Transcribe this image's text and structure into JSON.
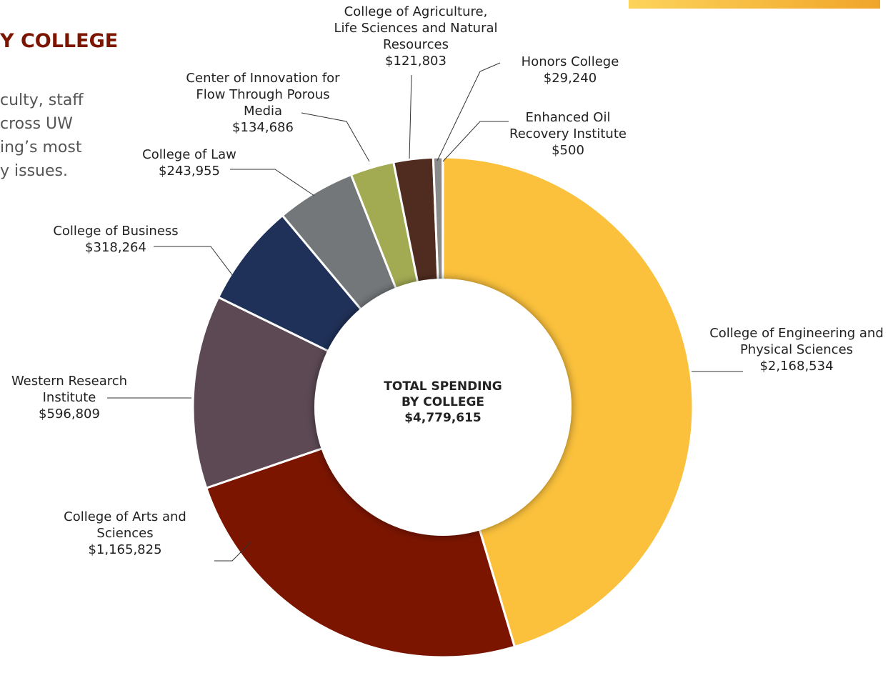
{
  "page": {
    "heading": "Y COLLEGE",
    "intro": [
      "culty, staff",
      "cross UW",
      "ing’s most",
      "y issues."
    ]
  },
  "chart_data": {
    "type": "donut",
    "center_title": "TOTAL SPENDING BY COLLEGE",
    "total": 4779615,
    "total_label": "$4,779,615",
    "categories": [
      "College of Engineering and Physical Sciences",
      "College of Arts and Sciences",
      "Western Research Institute",
      "College of Business",
      "College of Law",
      "Center of Innovation for Flow Through Porous Media",
      "College of Agriculture, Life Sciences and Natural Resources",
      "Honors College",
      "Enhanced Oil Recovery Institute"
    ],
    "values": [
      2168534,
      1165825,
      596809,
      318264,
      243955,
      134686,
      121803,
      29240,
      500
    ],
    "value_labels": [
      "$2,168,534",
      "$1,165,825",
      "$596,809",
      "$318,264",
      "$243,955",
      "$134,686",
      "$121,803",
      "$29,240",
      "$500"
    ],
    "colors": [
      "#fbc13c",
      "#7b1500",
      "#5c4954",
      "#1f3158",
      "#737779",
      "#a2aa52",
      "#4f2c1f",
      "#8a8a8a",
      "#3f6b3c"
    ]
  }
}
